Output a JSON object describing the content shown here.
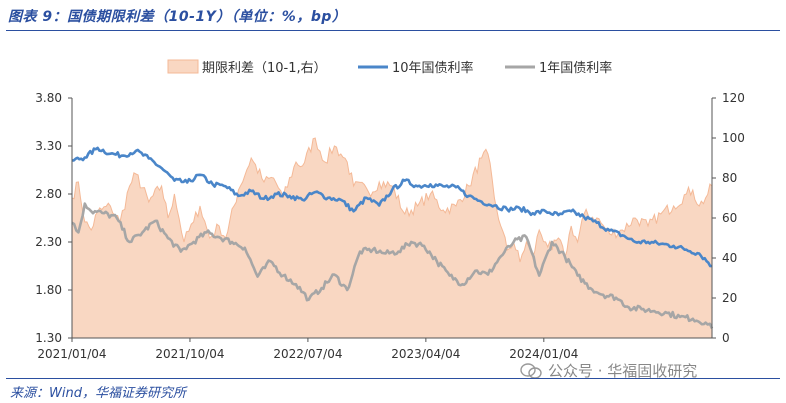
{
  "title": "图表 9：国债期限利差（10-1Y）（单位：%，bp）",
  "source": "来源：Wind，华福证券研究所",
  "watermark": "公众号 · 华福固收研究",
  "colors": {
    "spread_fill": "#f9d7c2",
    "spread_line": "#f4b997",
    "y10": "#4a86c9",
    "y1": "#a6a6a6",
    "frame": "#2b4fa0"
  },
  "chart_data": {
    "type": "line",
    "title": "",
    "legend_position": "top",
    "x_tick_labels": [
      "2021/01/04",
      "2021/10/04",
      "2022/07/04",
      "2023/04/04",
      "2024/01/04"
    ],
    "x_tick_positions": [
      0,
      0.1843,
      0.3686,
      0.5529,
      0.7372
    ],
    "left_axis": {
      "min": 1.3,
      "max": 3.8,
      "ticks": [
        "1.30",
        "1.80",
        "2.30",
        "2.80",
        "3.30",
        "3.80"
      ]
    },
    "right_axis": {
      "min": 0,
      "max": 120,
      "ticks": [
        "0",
        "20",
        "40",
        "60",
        "80",
        "100",
        "120"
      ]
    },
    "series": [
      {
        "name": "期限利差（10-1,右）",
        "kind": "area",
        "axis": "right",
        "t": [
          0,
          0.01,
          0.02,
          0.03,
          0.04,
          0.06,
          0.075,
          0.09,
          0.1,
          0.12,
          0.14,
          0.15,
          0.16,
          0.175,
          0.19,
          0.2,
          0.215,
          0.23,
          0.24,
          0.26,
          0.28,
          0.3,
          0.315,
          0.33,
          0.35,
          0.36,
          0.38,
          0.395,
          0.41,
          0.42,
          0.43,
          0.44,
          0.46,
          0.47,
          0.48,
          0.5,
          0.52,
          0.54,
          0.56,
          0.58,
          0.6,
          0.62,
          0.64,
          0.65,
          0.66,
          0.67,
          0.68,
          0.69,
          0.7,
          0.71,
          0.72,
          0.73,
          0.74,
          0.75,
          0.76,
          0.77,
          0.78,
          0.79,
          0.8,
          0.82,
          0.84,
          0.86,
          0.88,
          0.9,
          0.92,
          0.94,
          0.96,
          0.97,
          0.98,
          0.99,
          1.0
        ],
        "values": [
          70,
          78,
          58,
          54,
          63,
          66,
          58,
          76,
          82,
          68,
          76,
          60,
          72,
          48,
          58,
          66,
          50,
          56,
          50,
          74,
          90,
          78,
          80,
          70,
          88,
          86,
          100,
          88,
          96,
          92,
          88,
          76,
          75,
          73,
          78,
          76,
          62,
          66,
          72,
          64,
          66,
          76,
          90,
          92,
          70,
          56,
          44,
          48,
          38,
          48,
          40,
          54,
          48,
          44,
          50,
          40,
          56,
          48,
          62,
          60,
          52,
          54,
          60,
          56,
          62,
          66,
          72,
          74,
          66,
          70,
          76
        ]
      },
      {
        "name": "10年国债利率",
        "kind": "line",
        "axis": "left",
        "t": [
          0,
          0.02,
          0.04,
          0.06,
          0.08,
          0.1,
          0.12,
          0.14,
          0.16,
          0.18,
          0.2,
          0.22,
          0.24,
          0.26,
          0.28,
          0.3,
          0.32,
          0.34,
          0.36,
          0.38,
          0.4,
          0.42,
          0.44,
          0.46,
          0.48,
          0.5,
          0.52,
          0.54,
          0.56,
          0.58,
          0.6,
          0.62,
          0.64,
          0.66,
          0.68,
          0.7,
          0.72,
          0.74,
          0.76,
          0.78,
          0.8,
          0.82,
          0.84,
          0.86,
          0.88,
          0.9,
          0.92,
          0.94,
          0.96,
          0.98,
          1.0
        ],
        "values": [
          3.15,
          3.18,
          3.28,
          3.22,
          3.2,
          3.25,
          3.17,
          3.07,
          2.94,
          2.92,
          3.0,
          2.9,
          2.88,
          2.78,
          2.83,
          2.75,
          2.8,
          2.78,
          2.74,
          2.82,
          2.76,
          2.74,
          2.62,
          2.76,
          2.68,
          2.84,
          2.94,
          2.88,
          2.9,
          2.88,
          2.87,
          2.78,
          2.72,
          2.68,
          2.64,
          2.65,
          2.6,
          2.62,
          2.58,
          2.62,
          2.56,
          2.5,
          2.42,
          2.37,
          2.3,
          2.3,
          2.28,
          2.26,
          2.22,
          2.18,
          2.05
        ]
      },
      {
        "name": "1年国债利率",
        "kind": "line",
        "axis": "left",
        "t": [
          0,
          0.01,
          0.02,
          0.03,
          0.05,
          0.07,
          0.09,
          0.11,
          0.13,
          0.15,
          0.17,
          0.19,
          0.21,
          0.23,
          0.25,
          0.27,
          0.29,
          0.31,
          0.33,
          0.35,
          0.37,
          0.39,
          0.41,
          0.43,
          0.45,
          0.47,
          0.49,
          0.51,
          0.53,
          0.55,
          0.57,
          0.59,
          0.61,
          0.63,
          0.65,
          0.67,
          0.69,
          0.71,
          0.73,
          0.75,
          0.77,
          0.79,
          0.81,
          0.83,
          0.85,
          0.87,
          0.89,
          0.91,
          0.93,
          0.95,
          0.97,
          0.99,
          1.0
        ],
        "values": [
          2.5,
          2.4,
          2.7,
          2.62,
          2.6,
          2.55,
          2.3,
          2.4,
          2.52,
          2.34,
          2.2,
          2.3,
          2.4,
          2.35,
          2.3,
          2.24,
          1.94,
          2.1,
          1.95,
          1.86,
          1.7,
          1.82,
          1.96,
          1.8,
          2.2,
          2.22,
          2.18,
          2.2,
          2.3,
          2.26,
          2.1,
          1.95,
          1.86,
          2.0,
          1.96,
          2.15,
          2.3,
          2.35,
          1.95,
          2.3,
          2.15,
          1.95,
          1.82,
          1.75,
          1.72,
          1.62,
          1.6,
          1.58,
          1.56,
          1.52,
          1.5,
          1.46,
          1.4
        ]
      }
    ]
  }
}
